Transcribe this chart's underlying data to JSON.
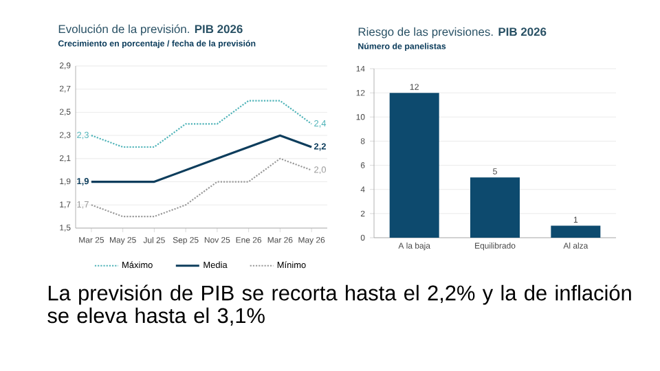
{
  "chart_data": [
    {
      "type": "line",
      "title": "Evolución de la previsión. **PIB 2026**",
      "subtitle": "Crecimiento en porcentaje / fecha de la previsión",
      "categories": [
        "Mar 25",
        "May 25",
        "Jul 25",
        "Sep 25",
        "Nov 25",
        "Ene 26",
        "Mar 26",
        "May 26"
      ],
      "series": [
        {
          "name": "Máximo",
          "color": "#4fb3b8",
          "line_style": "dotted",
          "values": [
            2.3,
            2.2,
            2.2,
            2.4,
            2.4,
            2.6,
            2.6,
            2.4
          ],
          "value_labels": [
            "2,3",
            null,
            null,
            null,
            null,
            null,
            null,
            "2,4"
          ]
        },
        {
          "name": "Media",
          "color": "#0d3d5c",
          "line_style": "solid",
          "values": [
            1.9,
            1.9,
            1.9,
            2.0,
            2.1,
            2.2,
            2.3,
            2.2
          ],
          "value_labels": [
            "1,9",
            null,
            null,
            null,
            null,
            null,
            null,
            "2,2"
          ]
        },
        {
          "name": "Mínimo",
          "color": "#9a9a9a",
          "line_style": "dotted",
          "values": [
            1.7,
            1.6,
            1.6,
            1.7,
            1.9,
            1.9,
            2.1,
            2.0
          ],
          "value_labels": [
            "1,7",
            null,
            null,
            null,
            null,
            null,
            null,
            "2,0"
          ]
        }
      ],
      "ylim": [
        1.5,
        2.9
      ],
      "yticks": [
        {
          "value": 1.5,
          "label": "1,5"
        },
        {
          "value": 1.7,
          "label": "1,7"
        },
        {
          "value": 1.9,
          "label": "1,9"
        },
        {
          "value": 2.1,
          "label": "2,1"
        },
        {
          "value": 2.3,
          "label": "2,3"
        },
        {
          "value": 2.5,
          "label": "2,5"
        },
        {
          "value": 2.7,
          "label": "2,7"
        },
        {
          "value": 2.9,
          "label": "2,9"
        }
      ],
      "grid": "y",
      "legend": "bottom"
    },
    {
      "type": "bar",
      "title": "Riesgo de las previsiones. **PIB 2026**",
      "subtitle": "Número de panelistas",
      "categories": [
        "A la baja",
        "Equilibrado",
        "Al alza"
      ],
      "values": [
        12,
        5,
        1
      ],
      "color": "#0d4a6e",
      "ylim": [
        0,
        14
      ],
      "yticks": [
        0,
        2,
        4,
        6,
        8,
        10,
        12,
        14
      ],
      "grid": "y",
      "data_labels": true
    },
    {
      "type": "other",
      "title": "La previsión de PIB se recorta hasta el 2,2% y la de inflación se eleva hasta el 3,1%"
    }
  ]
}
